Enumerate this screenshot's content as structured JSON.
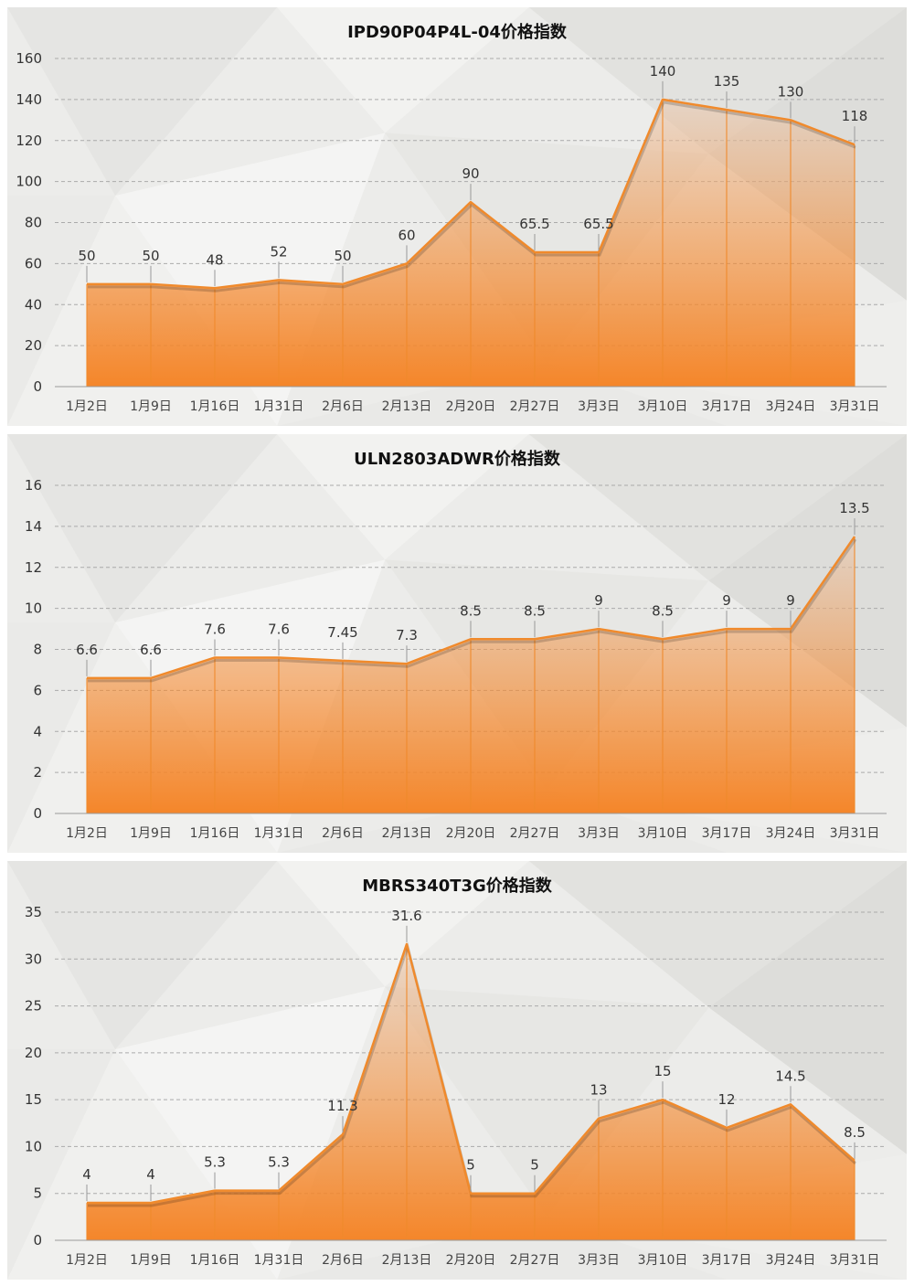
{
  "chart_data": [
    {
      "type": "area",
      "title": "IPD90P04P4L-04价格指数",
      "categories": [
        "1月2日",
        "1月9日",
        "1月16日",
        "1月31日",
        "2月6日",
        "2月13日",
        "2月20日",
        "2月27日",
        "3月3日",
        "3月10日",
        "3月17日",
        "3月24日",
        "3月31日"
      ],
      "values": [
        50,
        50,
        48,
        52,
        50,
        60,
        90,
        65.5,
        65.5,
        140,
        135,
        130,
        118
      ],
      "labels": [
        "50",
        "50",
        "48",
        "52",
        "50",
        "60",
        "90",
        "65.5",
        "65.5",
        "140",
        "135",
        "130",
        "118"
      ],
      "yticks": [
        "0",
        "20",
        "40",
        "60",
        "80",
        "100",
        "120",
        "140",
        "160"
      ],
      "ylim": [
        0,
        160
      ],
      "ystep": 20,
      "grid": true
    },
    {
      "type": "area",
      "title": "ULN2803ADWR价格指数",
      "categories": [
        "1月2日",
        "1月9日",
        "1月16日",
        "1月31日",
        "2月6日",
        "2月13日",
        "2月20日",
        "2月27日",
        "3月3日",
        "3月10日",
        "3月17日",
        "3月24日",
        "3月31日"
      ],
      "values": [
        6.6,
        6.6,
        7.6,
        7.6,
        7.45,
        7.3,
        8.5,
        8.5,
        9,
        8.5,
        9,
        9,
        13.5
      ],
      "labels": [
        "6.6",
        "6.6",
        "7.6",
        "7.6",
        "7.45",
        "7.3",
        "8.5",
        "8.5",
        "9",
        "8.5",
        "9",
        "9",
        "13.5"
      ],
      "yticks": [
        "0",
        "2",
        "4",
        "6",
        "8",
        "10",
        "12",
        "14",
        "16"
      ],
      "ylim": [
        0,
        16
      ],
      "ystep": 2,
      "grid": true
    },
    {
      "type": "area",
      "title": "MBRS340T3G价格指数",
      "categories": [
        "1月2日",
        "1月9日",
        "1月16日",
        "1月31日",
        "2月6日",
        "2月13日",
        "2月20日",
        "2月27日",
        "3月3日",
        "3月10日",
        "3月17日",
        "3月24日",
        "3月31日"
      ],
      "values": [
        4,
        4,
        5.3,
        5.3,
        11.3,
        31.6,
        5,
        5,
        13,
        15,
        12,
        14.5,
        8.5
      ],
      "labels": [
        "4",
        "4",
        "5.3",
        "5.3",
        "11.3",
        "31.6",
        "5",
        "5",
        "13",
        "15",
        "12",
        "14.5",
        "8.5"
      ],
      "yticks": [
        "0",
        "5",
        "10",
        "15",
        "20",
        "25",
        "30",
        "35"
      ],
      "ylim": [
        0,
        35
      ],
      "ystep": 5,
      "grid": true
    }
  ],
  "colors": {
    "accent": "#f08a2c",
    "fill_bottom": "#f4862a",
    "fill_top": "#e8c8b0",
    "grid": "#aaaaaa",
    "background": "#ececea"
  }
}
